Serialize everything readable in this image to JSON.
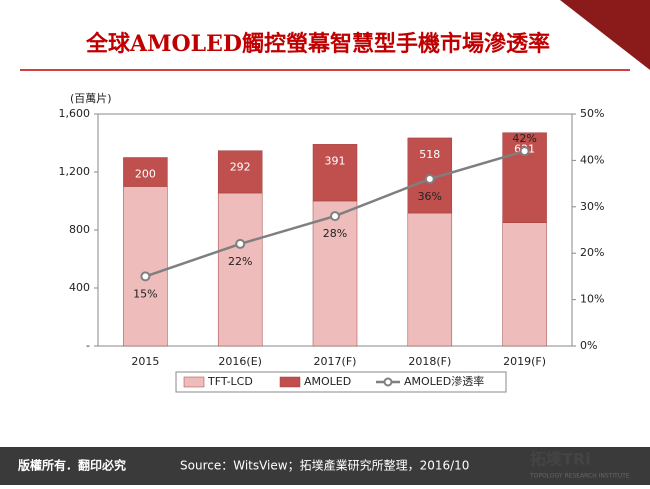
{
  "header": {
    "title": "全球AMOLED觸控螢幕智慧型手機市場滲透率"
  },
  "chart_data": {
    "type": "bar",
    "stacked": true,
    "y_unit_label": "(百萬片)",
    "categories": [
      "2015",
      "2016(E)",
      "2017(F)",
      "2018(F)",
      "2019(F)"
    ],
    "series": [
      {
        "name": "TFT-LCD",
        "color": "#efbcbc",
        "values": [
          1100,
          1055,
          1000,
          917,
          850
        ]
      },
      {
        "name": "AMOLED",
        "color": "#c0504d",
        "values": [
          200,
          292,
          391,
          518,
          621
        ]
      },
      {
        "name": "AMOLED滲透率",
        "type": "line",
        "axis": "y2",
        "color": "#7f7f7f",
        "values": [
          15,
          22,
          28,
          36,
          42
        ],
        "value_labels": [
          "15%",
          "22%",
          "28%",
          "36%",
          "42%"
        ]
      }
    ],
    "ylim": [
      0,
      1600
    ],
    "yticks": [
      {
        "value": 0,
        "label": "-"
      },
      400,
      800,
      {
        "value": 1200,
        "label": "1,200"
      },
      {
        "value": 1600,
        "label": "1,600"
      }
    ],
    "y2lim": [
      0,
      50
    ],
    "y2ticks": [
      {
        "value": 0,
        "label": "0%"
      },
      {
        "value": 10,
        "label": "10%"
      },
      {
        "value": 20,
        "label": "20%"
      },
      {
        "value": 30,
        "label": "30%"
      },
      {
        "value": 40,
        "label": "40%"
      },
      {
        "value": 50,
        "label": "50%"
      }
    ],
    "legend": "bottom",
    "grid": false
  },
  "footer": {
    "copyright": "版權所有．翻印必究",
    "source": "Source：WitsView；拓墣產業研究所整理，2016/10"
  },
  "logo": {
    "name": "拓墣TRi",
    "subtitle": "TOPOLOGY RESEARCH INSTITUTE"
  }
}
